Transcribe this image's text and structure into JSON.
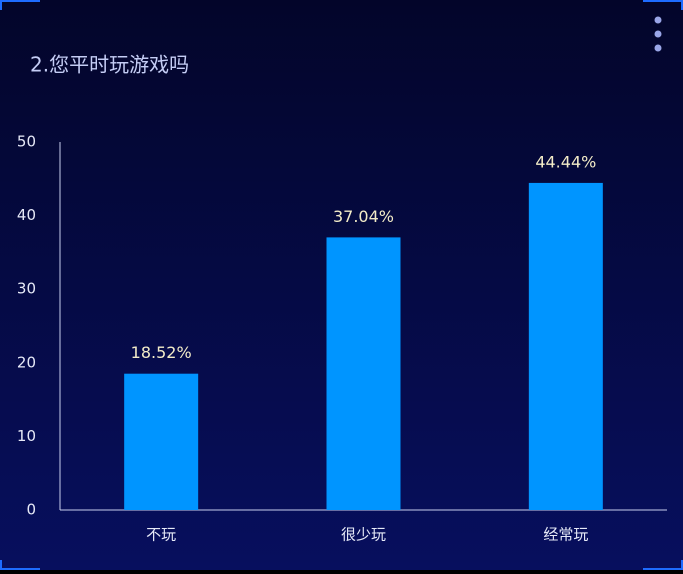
{
  "chart_data": {
    "type": "bar",
    "title": "2.您平时玩游戏吗",
    "categories": [
      "不玩",
      "很少玩",
      "经常玩"
    ],
    "values": [
      18.52,
      37.04,
      44.44
    ],
    "value_labels": [
      "18.52%",
      "37.04%",
      "44.44%"
    ],
    "color": "#0095ff",
    "ylim": [
      0,
      50
    ],
    "yticks": [
      0,
      10,
      20,
      30,
      40,
      50
    ],
    "grid": false
  }
}
